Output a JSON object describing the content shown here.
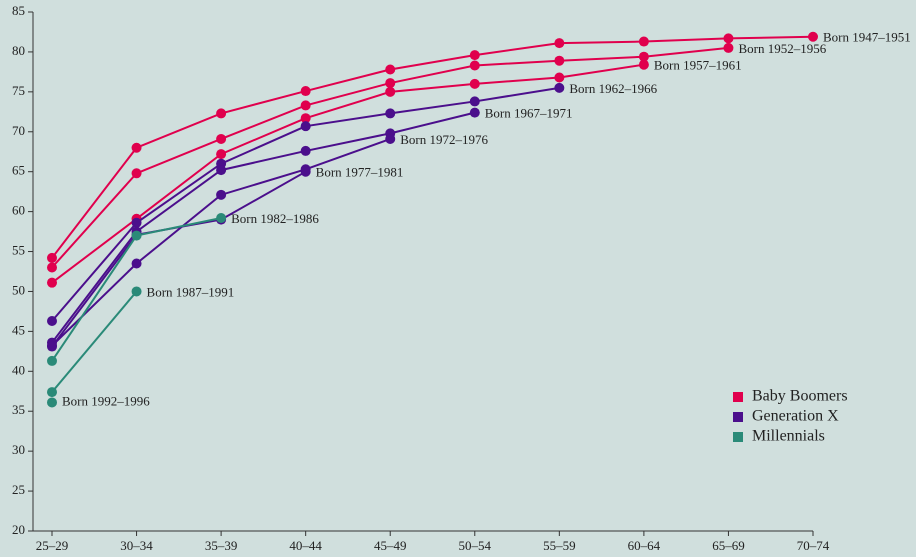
{
  "chart_data": {
    "type": "line",
    "categories": [
      "25–29",
      "30–34",
      "35–39",
      "40–44",
      "45–49",
      "50–54",
      "55–59",
      "60–64",
      "65–69",
      "70–74"
    ],
    "ylim": [
      20,
      85
    ],
    "yticks": [
      20,
      25,
      30,
      35,
      40,
      45,
      50,
      55,
      60,
      65,
      70,
      75,
      80,
      85
    ],
    "legend": "lower right",
    "groups": [
      {
        "name": "Baby Boomers",
        "color": "#e0004d",
        "series": [
          {
            "name": "Born 1947–1951",
            "values": [
              54.2,
              68.0,
              72.3,
              75.1,
              77.8,
              79.6,
              81.1,
              81.3,
              81.7,
              81.9
            ]
          },
          {
            "name": "Born 1952–1956",
            "values": [
              53.0,
              64.8,
              69.1,
              73.3,
              76.1,
              78.3,
              78.9,
              79.4,
              80.5,
              null
            ]
          },
          {
            "name": "Born 1957–1961",
            "values": [
              51.1,
              59.1,
              67.2,
              71.7,
              75.0,
              76.0,
              76.8,
              78.4,
              null,
              null
            ]
          }
        ]
      },
      {
        "name": "Generation X",
        "color": "#4b0f8c",
        "series": [
          {
            "name": "Born 1962–1966",
            "values": [
              46.3,
              58.6,
              66.0,
              70.7,
              72.3,
              73.8,
              75.5,
              null,
              null,
              null
            ]
          },
          {
            "name": "Born 1967–1971",
            "values": [
              43.6,
              57.5,
              65.2,
              67.6,
              69.8,
              72.4,
              null,
              null,
              null,
              null
            ]
          },
          {
            "name": "Born 1972–1976",
            "values": [
              43.2,
              53.5,
              62.1,
              65.3,
              69.1,
              null,
              null,
              null,
              null,
              null
            ]
          },
          {
            "name": "Born 1977–1981",
            "values": [
              43.1,
              57.1,
              59.0,
              65.0,
              null,
              null,
              null,
              null,
              null,
              null
            ]
          }
        ]
      },
      {
        "name": "Millennials",
        "color": "#2a8a78",
        "series": [
          {
            "name": "Born 1982–1986",
            "values": [
              41.3,
              57.0,
              59.2,
              null,
              null,
              null,
              null,
              null,
              null,
              null
            ]
          },
          {
            "name": "Born 1987–1991",
            "values": [
              37.4,
              50.0,
              null,
              null,
              null,
              null,
              null,
              null,
              null,
              null
            ]
          },
          {
            "name": "Born 1992–1996",
            "values": [
              36.1,
              null,
              null,
              null,
              null,
              null,
              null,
              null,
              null,
              null
            ]
          }
        ]
      }
    ]
  }
}
